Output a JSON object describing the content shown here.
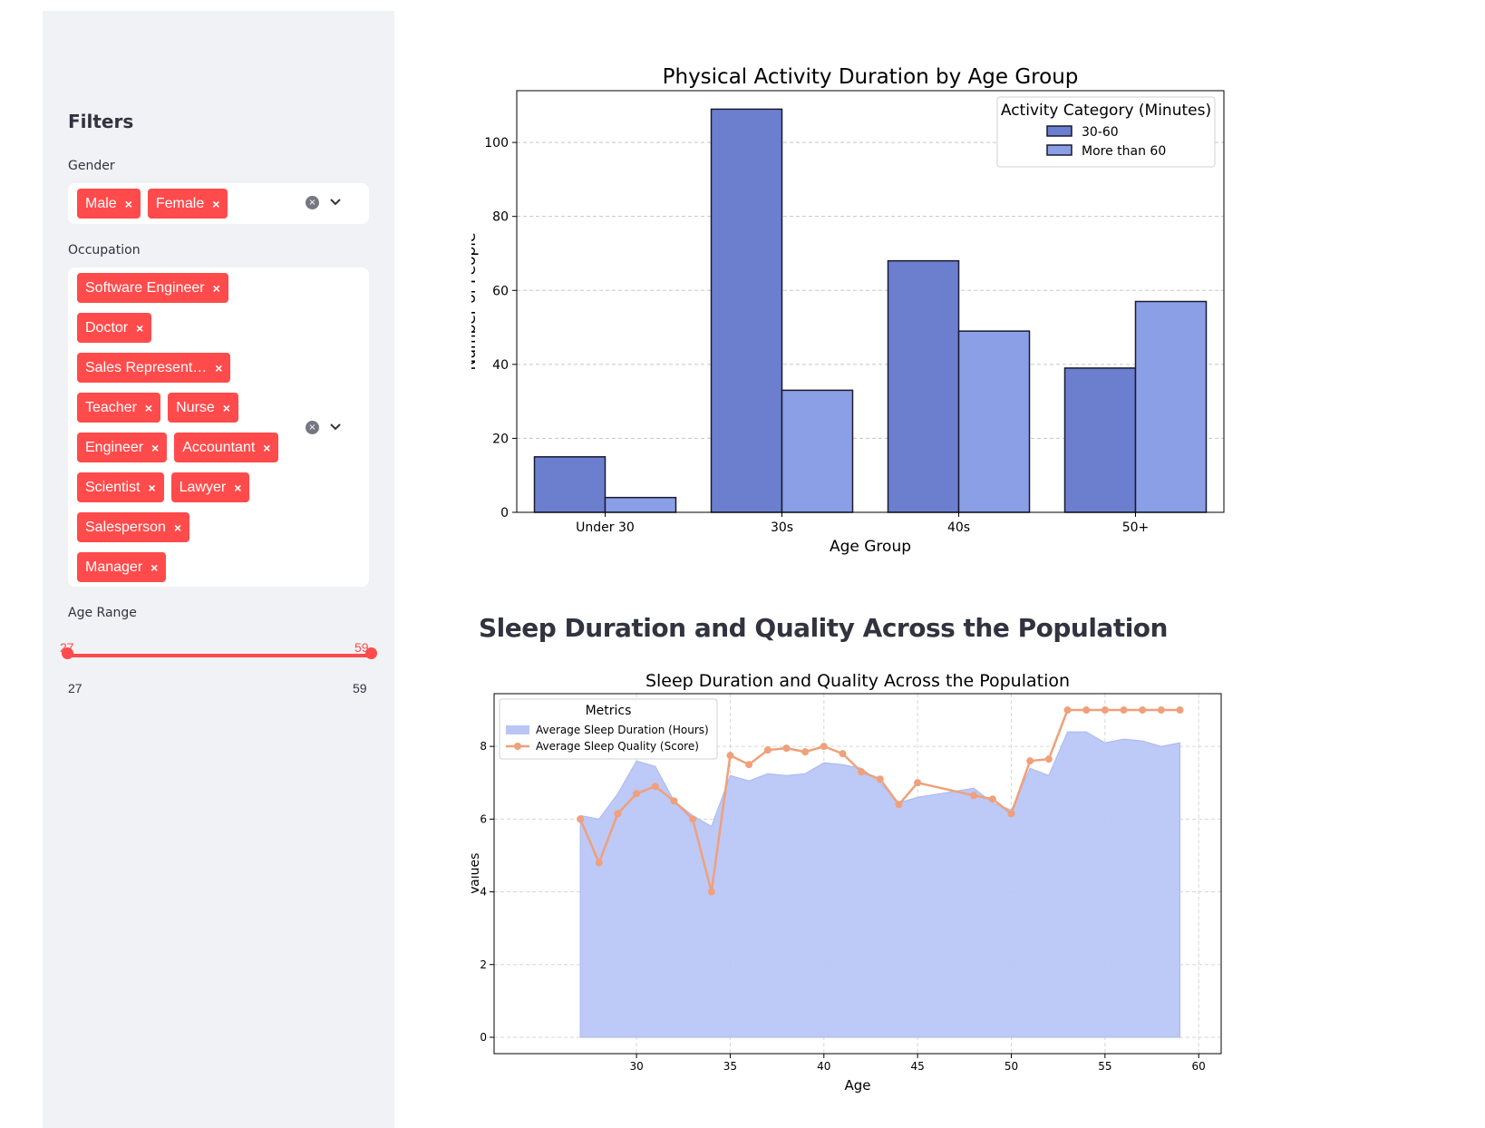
{
  "sidebar": {
    "title": "Filters",
    "gender": {
      "label": "Gender",
      "selected": [
        "Male",
        "Female"
      ]
    },
    "occupation": {
      "label": "Occupation",
      "selected": [
        "Software Engineer",
        "Doctor",
        "Sales Represent…",
        "Teacher",
        "Nurse",
        "Engineer",
        "Accountant",
        "Scientist",
        "Lawyer",
        "Salesperson",
        "Manager"
      ]
    },
    "age_range": {
      "label": "Age Range",
      "low": "27",
      "high": "59",
      "min": "27",
      "max": "59"
    },
    "chip_remove": "×",
    "clear_glyph": "×"
  },
  "main": {
    "section_heading": "Sleep Duration and Quality Across the Population"
  },
  "colors": {
    "accent": "#ff4b4b",
    "bar_30_60": "#6c7fcf",
    "bar_more_60": "#8a9fe6",
    "area": "#b9c6f5",
    "line": "#f0a07a"
  },
  "chart_data": [
    {
      "type": "bar",
      "title": "Physical Activity Duration by Age Group",
      "xlabel": "Age Group",
      "ylabel": "Number of People",
      "categories": [
        "Under 30",
        "30s",
        "40s",
        "50+"
      ],
      "series": [
        {
          "name": "30-60",
          "values": [
            15,
            109,
            68,
            39
          ]
        },
        {
          "name": "More than 60",
          "values": [
            4,
            33,
            49,
            57
          ]
        }
      ],
      "legend_title": "Activity Category (Minutes)",
      "legend_position": "top-right",
      "ylim": [
        0,
        114
      ],
      "yticks": [
        0,
        20,
        40,
        60,
        80,
        100
      ],
      "grid": "y dashed"
    },
    {
      "type": "area",
      "title": "Sleep Duration and Quality Across the Population",
      "xlabel": "Age",
      "ylabel": "Values",
      "x": [
        27,
        28,
        29,
        30,
        31,
        32,
        33,
        34,
        35,
        36,
        37,
        38,
        39,
        40,
        41,
        42,
        43,
        44,
        45,
        48,
        49,
        50,
        51,
        52,
        53,
        54,
        55,
        56,
        57,
        58,
        59
      ],
      "series": [
        {
          "name": "Average Sleep Duration (Hours)",
          "kind": "area",
          "values": [
            6.1,
            6.0,
            6.7,
            7.6,
            7.45,
            6.5,
            6.1,
            5.8,
            7.2,
            7.05,
            7.25,
            7.2,
            7.25,
            7.55,
            7.5,
            7.4,
            7.0,
            6.45,
            6.6,
            6.85,
            6.45,
            6.25,
            7.4,
            7.2,
            8.4,
            8.4,
            8.1,
            8.2,
            8.15,
            8.0,
            8.1
          ]
        },
        {
          "name": "Average Sleep Quality (Score)",
          "kind": "line",
          "values": [
            6.0,
            4.8,
            6.15,
            6.7,
            6.9,
            6.5,
            6.0,
            4.0,
            7.75,
            7.5,
            7.9,
            7.95,
            7.85,
            8.0,
            7.8,
            7.3,
            7.1,
            6.4,
            7.0,
            6.65,
            6.55,
            6.15,
            7.6,
            7.65,
            9.0,
            9.0,
            9.0,
            9.0,
            9.0,
            9.0,
            9.0
          ]
        }
      ],
      "legend_title": "Metrics",
      "legend_position": "top-left",
      "xlim": [
        22.4,
        61.2
      ],
      "ylim": [
        -0.45,
        9.45
      ],
      "xticks": [
        30,
        35,
        40,
        45,
        50,
        55,
        60
      ],
      "yticks": [
        0,
        2,
        4,
        6,
        8
      ],
      "grid": "both dashed"
    }
  ]
}
